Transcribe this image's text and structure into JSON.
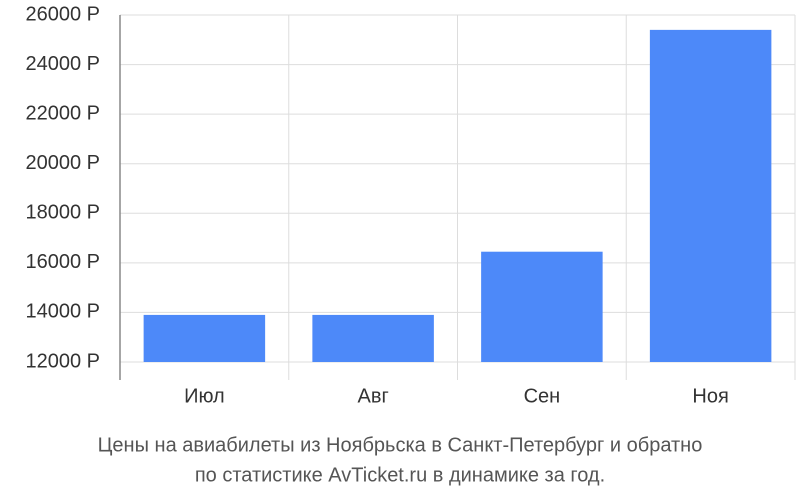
{
  "chart_data": {
    "type": "bar",
    "categories": [
      "Июл",
      "Авг",
      "Сен",
      "Ноя"
    ],
    "values": [
      13900,
      13900,
      16450,
      25400
    ],
    "color": "#4d89f9",
    "ylim": [
      12000,
      26000
    ],
    "yticks": [
      {
        "value": 12000,
        "label": "12000 Р"
      },
      {
        "value": 14000,
        "label": "14000 Р"
      },
      {
        "value": 16000,
        "label": "16000 Р"
      },
      {
        "value": 18000,
        "label": "18000 Р"
      },
      {
        "value": 20000,
        "label": "20000 Р"
      },
      {
        "value": 22000,
        "label": "22000 Р"
      },
      {
        "value": 24000,
        "label": "24000 Р"
      },
      {
        "value": 26000,
        "label": "26000 Р"
      }
    ],
    "grid": true,
    "caption": [
      "Цены на авиабилеты из Ноябрьска в Санкт-Петербург и обратно",
      "по статистике AvTicket.ru в динамике за год."
    ]
  }
}
